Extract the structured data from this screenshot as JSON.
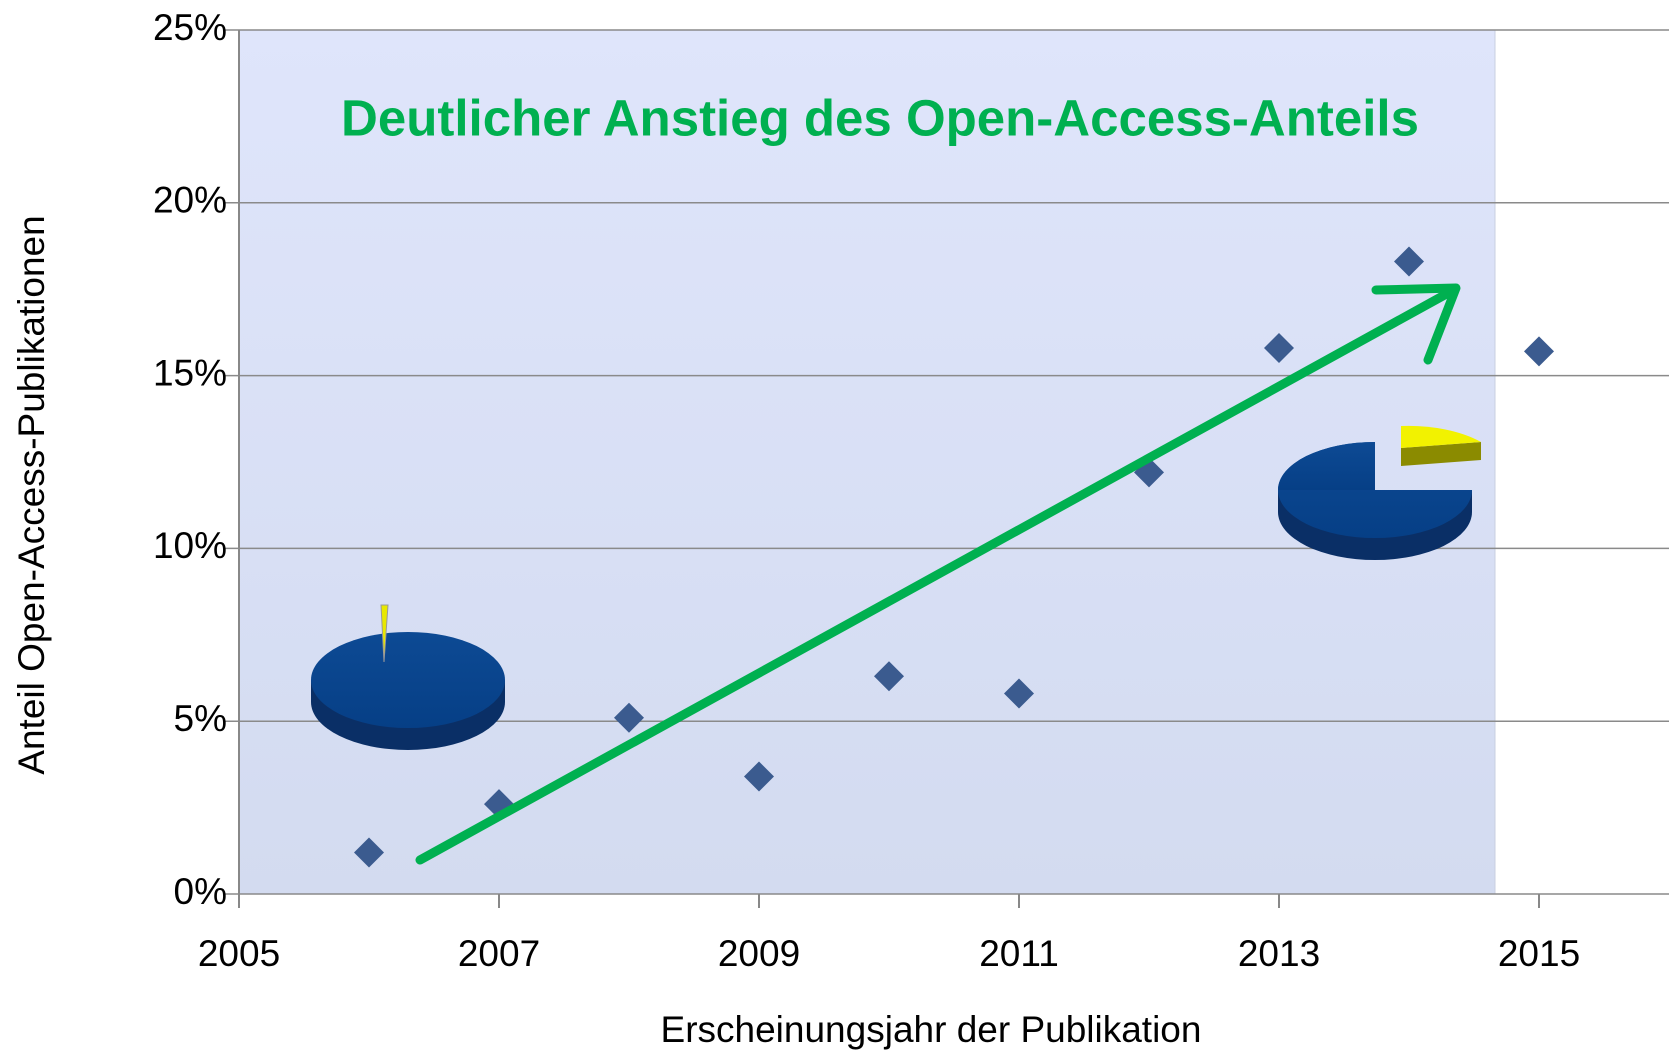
{
  "chart_data": {
    "type": "scatter",
    "title": "Deutlicher Anstieg des Open-Access-Anteils",
    "x_label": "Erscheinungsjahr der Publikation",
    "y_label": "Anteil Open-Access-Publikationen",
    "x": [
      2006,
      2007,
      2008,
      2009,
      2010,
      2011,
      2012,
      2013,
      2014,
      2015
    ],
    "values": [
      1.2,
      2.6,
      5.1,
      3.4,
      6.3,
      5.8,
      12.2,
      15.8,
      18.3,
      15.7
    ],
    "color": "#3b5b8f",
    "xlim": [
      2005,
      2016
    ],
    "xticks": [
      2005,
      2007,
      2009,
      2011,
      2013,
      2015
    ],
    "ylim": [
      0,
      25
    ],
    "yticks": [
      {
        "value": 0,
        "label": "0%"
      },
      {
        "value": 5,
        "label": "5%"
      },
      {
        "value": 10,
        "label": "10%"
      },
      {
        "value": 15,
        "label": "15%"
      },
      {
        "value": 20,
        "label": "20%"
      },
      {
        "value": 25,
        "label": "25%"
      }
    ],
    "grid": true
  }
}
